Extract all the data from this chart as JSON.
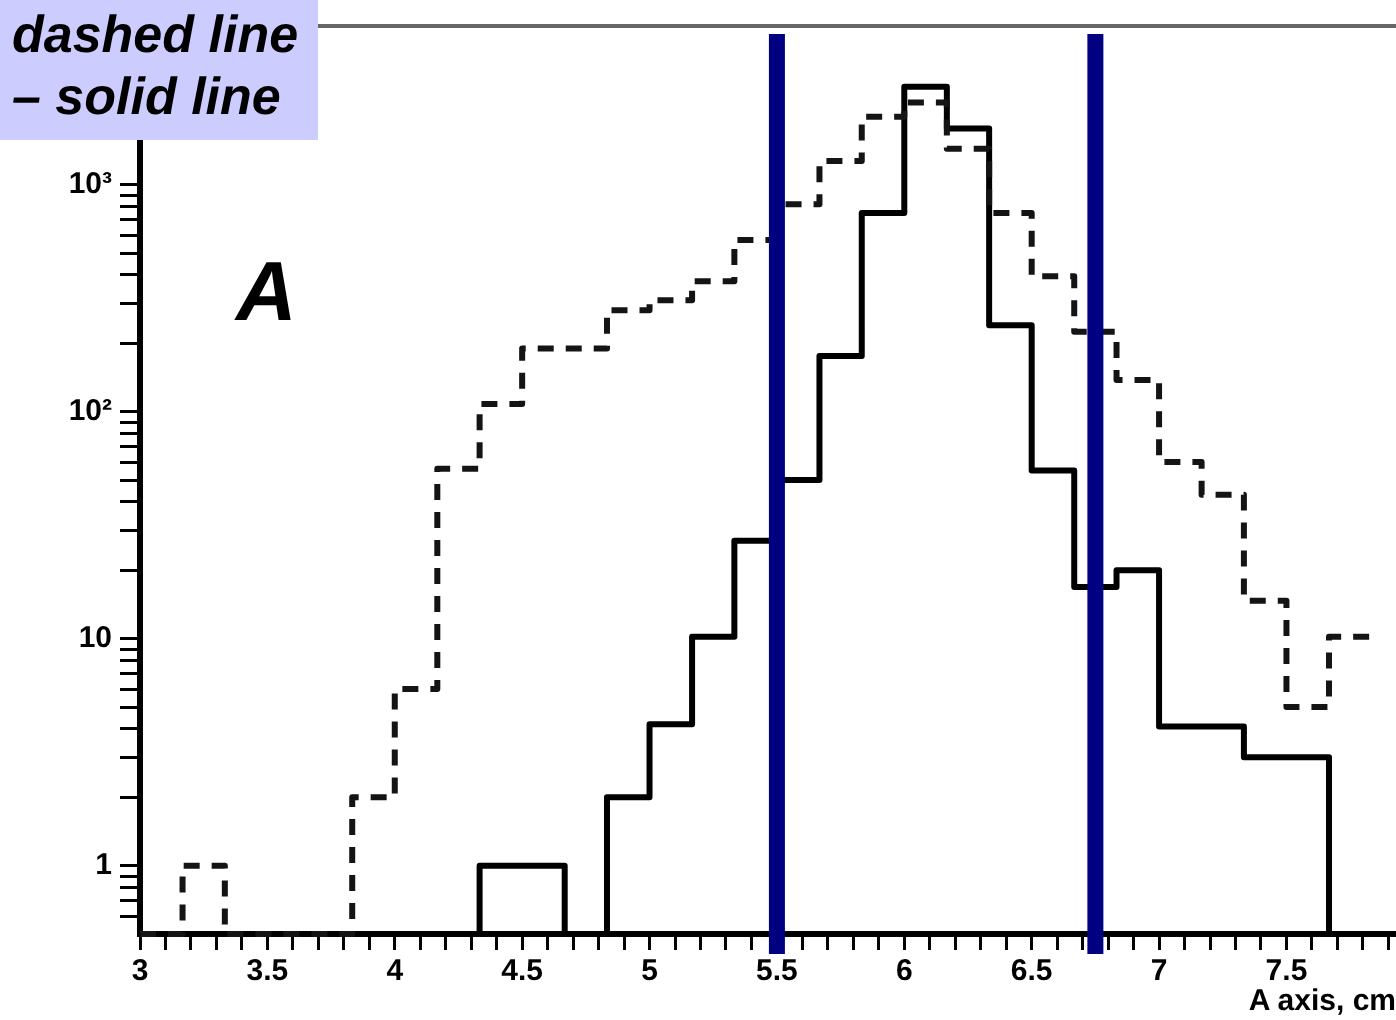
{
  "chart_data": {
    "type": "histogram",
    "xlabel": "A axis, cm",
    "log": "y",
    "grid": false,
    "legend": false,
    "annotations": [
      "dashed line",
      "– solid line",
      "A"
    ],
    "bins": [
      3,
      3.167,
      3.333,
      3.5,
      3.667,
      3.833,
      4,
      4.167,
      4.333,
      4.5,
      4.667,
      4.833,
      5,
      5.167,
      5.333,
      5.5,
      5.667,
      5.833,
      6,
      6.167,
      6.333,
      6.5,
      6.667,
      6.833,
      7,
      7.167,
      7.333,
      7.5,
      7.667,
      7.833
    ],
    "series": [
      {
        "color": "#141414",
        "line_style": "dashed",
        "values": [
          null,
          1,
          null,
          null,
          null,
          2,
          6,
          56,
          108,
          190,
          190,
          280,
          310,
          375,
          570,
          820,
          1270,
          1990,
          2300,
          1440,
          750,
          395,
          225,
          138,
          60,
          43,
          14.7,
          5,
          10.2
        ]
      },
      {
        "color": "#000000",
        "line_style": "solid",
        "values": [
          null,
          null,
          null,
          null,
          null,
          null,
          null,
          null,
          1,
          1,
          null,
          2,
          4.2,
          10.2,
          27,
          50,
          176,
          750,
          2700,
          1770,
          240,
          55,
          16.9,
          20,
          4.1,
          4.1,
          3,
          3,
          null
        ]
      }
    ],
    "ref_lines": [
      {
        "axis": "x",
        "value": 5.5,
        "color": "#000080"
      },
      {
        "axis": "x",
        "value": 6.75,
        "color": "#000080"
      }
    ],
    "xlim": [
      3,
      7.93
    ],
    "xticks": [
      3,
      {
        "value": 3.1,
        "label": null
      },
      {
        "value": 3.2,
        "label": null
      },
      {
        "value": 3.3,
        "label": null
      },
      {
        "value": 3.4,
        "label": null
      },
      3.5,
      {
        "value": 3.6,
        "label": null
      },
      {
        "value": 3.7,
        "label": null
      },
      {
        "value": 3.8,
        "label": null
      },
      {
        "value": 3.9,
        "label": null
      },
      4,
      {
        "value": 4.1,
        "label": null
      },
      {
        "value": 4.2,
        "label": null
      },
      {
        "value": 4.3,
        "label": null
      },
      {
        "value": 4.4,
        "label": null
      },
      4.5,
      {
        "value": 4.6,
        "label": null
      },
      {
        "value": 4.7,
        "label": null
      },
      {
        "value": 4.8,
        "label": null
      },
      {
        "value": 4.9,
        "label": null
      },
      5,
      {
        "value": 5.1,
        "label": null
      },
      {
        "value": 5.2,
        "label": null
      },
      {
        "value": 5.3,
        "label": null
      },
      {
        "value": 5.4,
        "label": null
      },
      5.5,
      {
        "value": 5.6,
        "label": null
      },
      {
        "value": 5.7,
        "label": null
      },
      {
        "value": 5.8,
        "label": null
      },
      {
        "value": 5.9,
        "label": null
      },
      6,
      {
        "value": 6.1,
        "label": null
      },
      {
        "value": 6.2,
        "label": null
      },
      {
        "value": 6.3,
        "label": null
      },
      {
        "value": 6.4,
        "label": null
      },
      6.5,
      {
        "value": 6.6,
        "label": null
      },
      {
        "value": 6.7,
        "label": null
      },
      {
        "value": 6.8,
        "label": null
      },
      {
        "value": 6.9,
        "label": null
      },
      7,
      {
        "value": 7.1,
        "label": null
      },
      {
        "value": 7.2,
        "label": null
      },
      {
        "value": 7.3,
        "label": null
      },
      {
        "value": 7.4,
        "label": null
      },
      7.5,
      {
        "value": 7.6,
        "label": null
      },
      {
        "value": 7.7,
        "label": null
      },
      {
        "value": 7.8,
        "label": null
      },
      {
        "value": 7.9,
        "label": null
      }
    ],
    "ylim": [
      0.5,
      5000
    ],
    "yticks": [
      {
        "value": 0.6,
        "label": null
      },
      {
        "value": 0.7,
        "label": null
      },
      {
        "value": 0.8,
        "label": null
      },
      {
        "value": 0.9,
        "label": null
      },
      1,
      {
        "value": 2,
        "label": null
      },
      {
        "value": 3,
        "label": null
      },
      {
        "value": 4,
        "label": null
      },
      {
        "value": 5,
        "label": null
      },
      {
        "value": 6,
        "label": null
      },
      {
        "value": 7,
        "label": null
      },
      {
        "value": 8,
        "label": null
      },
      {
        "value": 9,
        "label": null
      },
      10,
      {
        "value": 20,
        "label": null
      },
      {
        "value": 30,
        "label": null
      },
      {
        "value": 40,
        "label": null
      },
      {
        "value": 50,
        "label": null
      },
      {
        "value": 60,
        "label": null
      },
      {
        "value": 70,
        "label": null
      },
      {
        "value": 80,
        "label": null
      },
      {
        "value": 90,
        "label": null
      },
      {
        "value": 100,
        "label": "10²"
      },
      {
        "value": 200,
        "label": null
      },
      {
        "value": 300,
        "label": null
      },
      {
        "value": 400,
        "label": null
      },
      {
        "value": 500,
        "label": null
      },
      {
        "value": 600,
        "label": null
      },
      {
        "value": 700,
        "label": null
      },
      {
        "value": 800,
        "label": null
      },
      {
        "value": 900,
        "label": null
      },
      {
        "value": 1000,
        "label": "10³"
      },
      {
        "value": 2000,
        "label": null
      },
      {
        "value": 3000,
        "label": null
      },
      {
        "value": 4000,
        "label": null
      },
      {
        "value": 5000,
        "label": null
      }
    ]
  }
}
